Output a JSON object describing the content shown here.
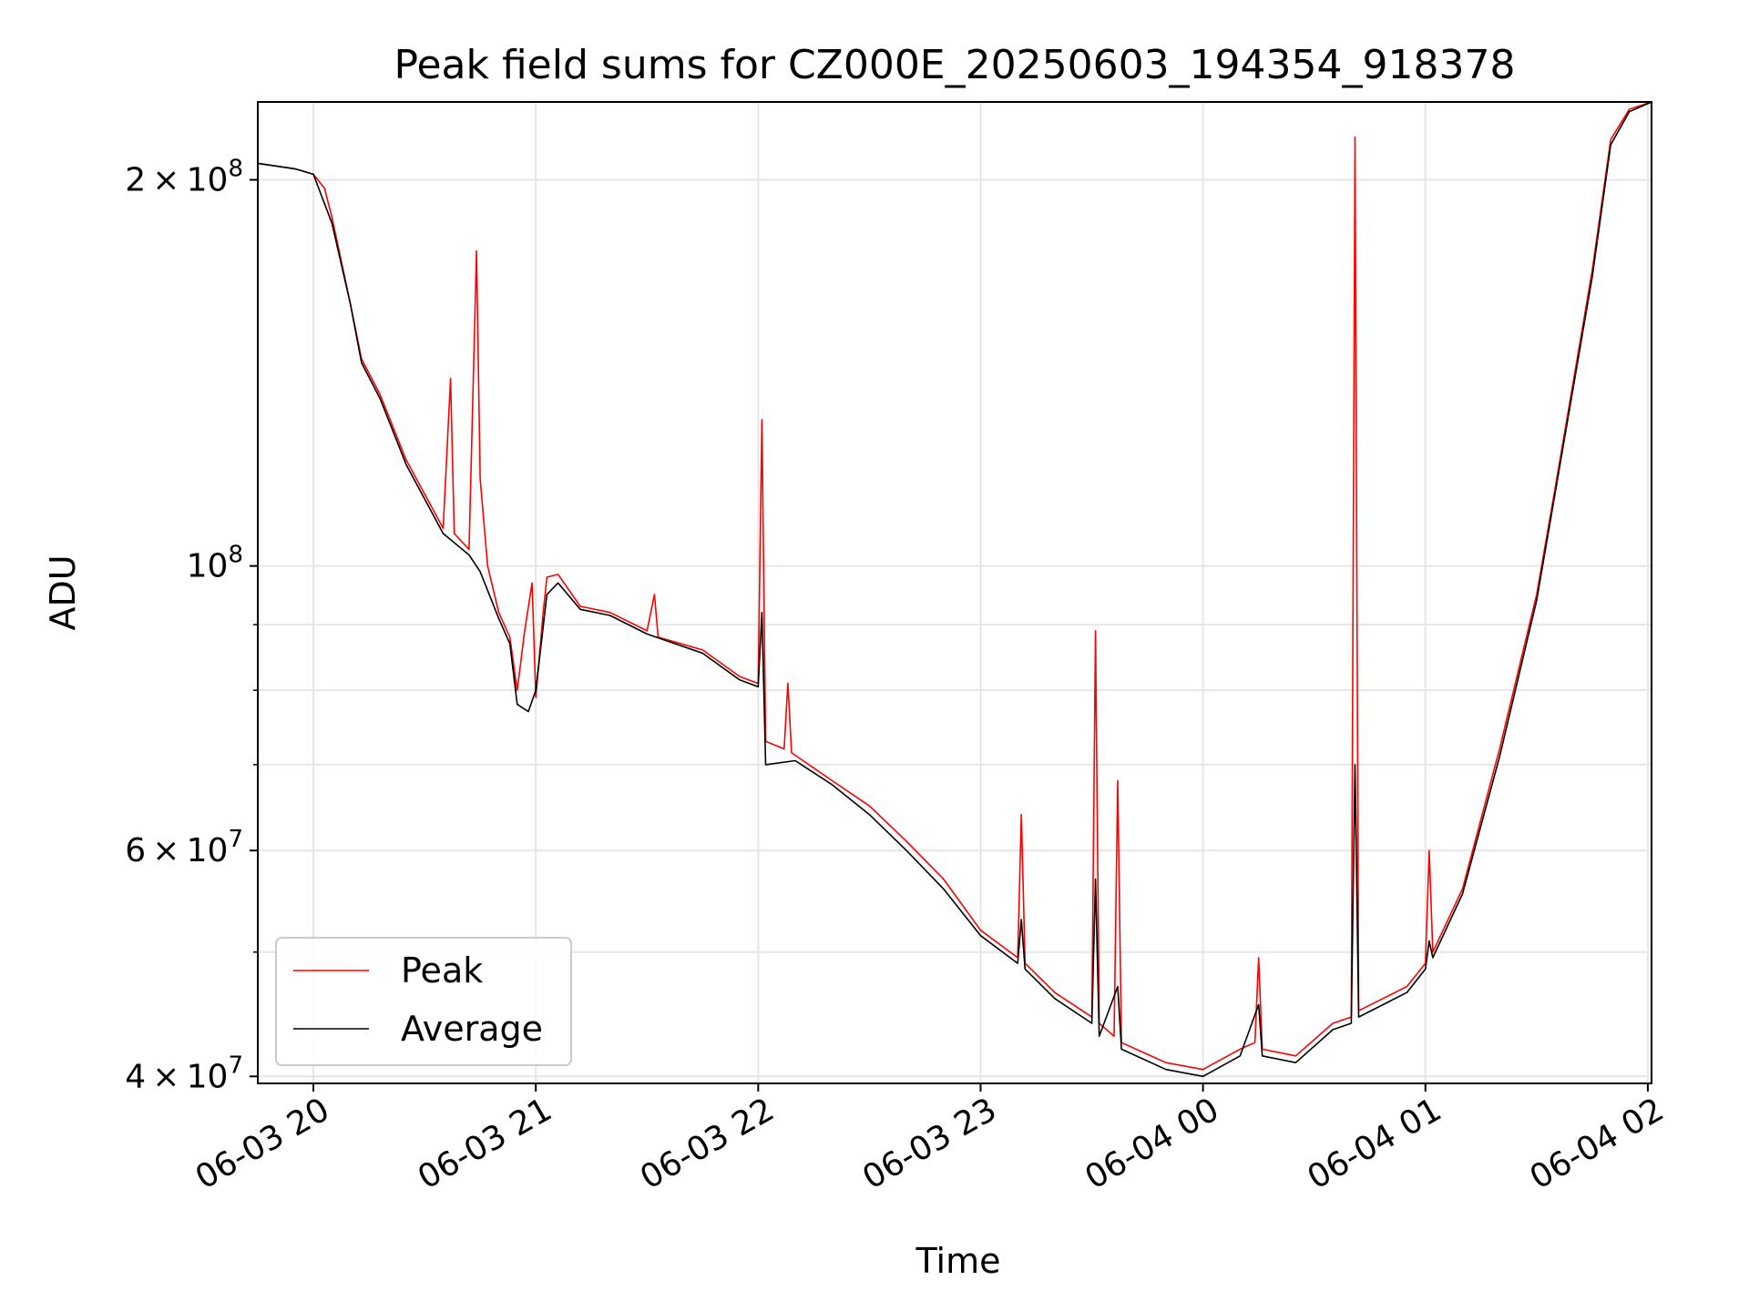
{
  "chart_data": {
    "type": "line",
    "title": "Peak field sums for CZ000E_20250603_194354_918378",
    "xlabel": "Time",
    "ylabel": "ADU",
    "yscale": "log",
    "grid": true,
    "legend_placement": "lower-left",
    "xlim": [
      "2025-06-03 19:45",
      "2025-06-04 02:01"
    ],
    "ylim": [
      39500000,
      230000000
    ],
    "x_ticks": [
      {
        "value": "2025-06-03 20:00",
        "label": "06-03 20"
      },
      {
        "value": "2025-06-03 21:00",
        "label": "06-03 21"
      },
      {
        "value": "2025-06-03 22:00",
        "label": "06-03 22"
      },
      {
        "value": "2025-06-03 23:00",
        "label": "06-03 23"
      },
      {
        "value": "2025-06-04 00:00",
        "label": "06-04 00"
      },
      {
        "value": "2025-06-04 01:00",
        "label": "06-04 01"
      },
      {
        "value": "2025-06-04 02:00",
        "label": "06-04 02"
      }
    ],
    "y_ticks": [
      {
        "value": 200000000,
        "mantissa": "2",
        "exponent": "8"
      },
      {
        "value": 100000000,
        "mantissa": "",
        "exponent": "8"
      },
      {
        "value": 60000000,
        "mantissa": "6",
        "exponent": "7"
      },
      {
        "value": 40000000,
        "mantissa": "4",
        "exponent": "7"
      }
    ],
    "y_minor_ticks": [
      300000000,
      90000000,
      80000000,
      70000000,
      50000000
    ],
    "series": [
      {
        "name": "Peak",
        "color": "#ff0000",
        "points": [
          [
            "2025-06-03 19:45",
            206000000
          ],
          [
            "2025-06-03 19:55",
            204000000
          ],
          [
            "2025-06-03 20:00",
            202000000
          ],
          [
            "2025-06-03 20:03",
            197000000
          ],
          [
            "2025-06-03 20:05",
            187000000
          ],
          [
            "2025-06-03 20:10",
            160000000
          ],
          [
            "2025-06-03 20:13",
            145000000
          ],
          [
            "2025-06-03 20:18",
            136000000
          ],
          [
            "2025-06-03 20:25",
            121000000
          ],
          [
            "2025-06-03 20:35",
            107000000
          ],
          [
            "2025-06-03 20:37",
            140000000
          ],
          [
            "2025-06-03 20:38",
            106000000
          ],
          [
            "2025-06-03 20:42",
            103000000
          ],
          [
            "2025-06-03 20:44",
            176000000
          ],
          [
            "2025-06-03 20:45",
            117000000
          ],
          [
            "2025-06-03 20:47",
            100000000
          ],
          [
            "2025-06-03 20:50",
            92000000
          ],
          [
            "2025-06-03 20:53",
            88000000
          ],
          [
            "2025-06-03 20:55",
            80000000
          ],
          [
            "2025-06-03 20:57",
            89000000
          ],
          [
            "2025-06-03 20:59",
            97000000
          ],
          [
            "2025-06-03 21:00",
            79000000
          ],
          [
            "2025-06-03 21:02",
            92000000
          ],
          [
            "2025-06-03 21:03",
            98000000
          ],
          [
            "2025-06-03 21:06",
            98500000
          ],
          [
            "2025-06-03 21:12",
            93000000
          ],
          [
            "2025-06-03 21:20",
            92000000
          ],
          [
            "2025-06-03 21:30",
            89000000
          ],
          [
            "2025-06-03 21:32",
            95000000
          ],
          [
            "2025-06-03 21:33",
            88000000
          ],
          [
            "2025-06-03 21:45",
            86000000
          ],
          [
            "2025-06-03 21:55",
            82000000
          ],
          [
            "2025-06-03 22:00",
            81000000
          ],
          [
            "2025-06-03 22:01",
            130000000
          ],
          [
            "2025-06-03 22:02",
            73000000
          ],
          [
            "2025-06-03 22:07",
            72000000
          ],
          [
            "2025-06-03 22:08",
            81000000
          ],
          [
            "2025-06-03 22:09",
            71500000
          ],
          [
            "2025-06-03 22:20",
            68000000
          ],
          [
            "2025-06-03 22:30",
            65000000
          ],
          [
            "2025-06-03 22:40",
            61000000
          ],
          [
            "2025-06-03 22:50",
            57000000
          ],
          [
            "2025-06-03 23:00",
            52000000
          ],
          [
            "2025-06-03 23:10",
            49500000
          ],
          [
            "2025-06-03 23:11",
            64000000
          ],
          [
            "2025-06-03 23:12",
            49000000
          ],
          [
            "2025-06-03 23:20",
            46500000
          ],
          [
            "2025-06-03 23:30",
            44500000
          ],
          [
            "2025-06-03 23:31",
            89000000
          ],
          [
            "2025-06-03 23:32",
            44000000
          ],
          [
            "2025-06-03 23:36",
            43000000
          ],
          [
            "2025-06-03 23:37",
            68000000
          ],
          [
            "2025-06-03 23:38",
            42500000
          ],
          [
            "2025-06-03 23:50",
            41000000
          ],
          [
            "2025-06-04 00:00",
            40500000
          ],
          [
            "2025-06-04 00:10",
            42000000
          ],
          [
            "2025-06-04 00:14",
            42500000
          ],
          [
            "2025-06-04 00:15",
            49500000
          ],
          [
            "2025-06-04 00:16",
            42000000
          ],
          [
            "2025-06-04 00:25",
            41500000
          ],
          [
            "2025-06-04 00:35",
            44000000
          ],
          [
            "2025-06-04 00:40",
            44500000
          ],
          [
            "2025-06-04 00:41",
            216000000
          ],
          [
            "2025-06-04 00:42",
            45000000
          ],
          [
            "2025-06-04 00:55",
            47000000
          ],
          [
            "2025-06-04 01:00",
            49000000
          ],
          [
            "2025-06-04 01:01",
            60000000
          ],
          [
            "2025-06-04 01:02",
            50000000
          ],
          [
            "2025-06-04 01:10",
            56000000
          ],
          [
            "2025-06-04 01:20",
            72000000
          ],
          [
            "2025-06-04 01:30",
            95000000
          ],
          [
            "2025-06-04 01:35",
            115000000
          ],
          [
            "2025-06-04 01:45",
            170000000
          ],
          [
            "2025-06-04 01:50",
            215000000
          ],
          [
            "2025-06-04 01:55",
            227000000
          ],
          [
            "2025-06-04 02:01",
            230000000
          ]
        ]
      },
      {
        "name": "Average",
        "color": "#000000",
        "points": [
          [
            "2025-06-03 19:45",
            206000000
          ],
          [
            "2025-06-03 19:55",
            204000000
          ],
          [
            "2025-06-03 20:00",
            202000000
          ],
          [
            "2025-06-03 20:05",
            185000000
          ],
          [
            "2025-06-03 20:10",
            160000000
          ],
          [
            "2025-06-03 20:13",
            144000000
          ],
          [
            "2025-06-03 20:18",
            135000000
          ],
          [
            "2025-06-03 20:25",
            120000000
          ],
          [
            "2025-06-03 20:35",
            106000000
          ],
          [
            "2025-06-03 20:42",
            102000000
          ],
          [
            "2025-06-03 20:45",
            99000000
          ],
          [
            "2025-06-03 20:50",
            91000000
          ],
          [
            "2025-06-03 20:53",
            87000000
          ],
          [
            "2025-06-03 20:55",
            78000000
          ],
          [
            "2025-06-03 20:58",
            77000000
          ],
          [
            "2025-06-03 21:00",
            80000000
          ],
          [
            "2025-06-03 21:03",
            95000000
          ],
          [
            "2025-06-03 21:06",
            97000000
          ],
          [
            "2025-06-03 21:12",
            92500000
          ],
          [
            "2025-06-03 21:20",
            91500000
          ],
          [
            "2025-06-03 21:30",
            88500000
          ],
          [
            "2025-06-03 21:45",
            85500000
          ],
          [
            "2025-06-03 21:55",
            81500000
          ],
          [
            "2025-06-03 22:00",
            80500000
          ],
          [
            "2025-06-03 22:01",
            92000000
          ],
          [
            "2025-06-03 22:02",
            70000000
          ],
          [
            "2025-06-03 22:10",
            70500000
          ],
          [
            "2025-06-03 22:20",
            67500000
          ],
          [
            "2025-06-03 22:30",
            64000000
          ],
          [
            "2025-06-03 22:40",
            60000000
          ],
          [
            "2025-06-03 22:50",
            56000000
          ],
          [
            "2025-06-03 23:00",
            51500000
          ],
          [
            "2025-06-03 23:10",
            49000000
          ],
          [
            "2025-06-03 23:11",
            53000000
          ],
          [
            "2025-06-03 23:12",
            48500000
          ],
          [
            "2025-06-03 23:20",
            46000000
          ],
          [
            "2025-06-03 23:30",
            44000000
          ],
          [
            "2025-06-03 23:31",
            57000000
          ],
          [
            "2025-06-03 23:32",
            43000000
          ],
          [
            "2025-06-03 23:37",
            47000000
          ],
          [
            "2025-06-03 23:38",
            42000000
          ],
          [
            "2025-06-03 23:50",
            40500000
          ],
          [
            "2025-06-04 00:00",
            40000000
          ],
          [
            "2025-06-04 00:10",
            41500000
          ],
          [
            "2025-06-04 00:15",
            45500000
          ],
          [
            "2025-06-04 00:16",
            41500000
          ],
          [
            "2025-06-04 00:25",
            41000000
          ],
          [
            "2025-06-04 00:35",
            43500000
          ],
          [
            "2025-06-04 00:40",
            44000000
          ],
          [
            "2025-06-04 00:41",
            70000000
          ],
          [
            "2025-06-04 00:42",
            44500000
          ],
          [
            "2025-06-04 00:55",
            46500000
          ],
          [
            "2025-06-04 01:00",
            48500000
          ],
          [
            "2025-06-04 01:01",
            51000000
          ],
          [
            "2025-06-04 01:02",
            49500000
          ],
          [
            "2025-06-04 01:10",
            55500000
          ],
          [
            "2025-06-04 01:20",
            71000000
          ],
          [
            "2025-06-04 01:30",
            94000000
          ],
          [
            "2025-06-04 01:35",
            114000000
          ],
          [
            "2025-06-04 01:45",
            168000000
          ],
          [
            "2025-06-04 01:50",
            213000000
          ],
          [
            "2025-06-04 01:55",
            226000000
          ],
          [
            "2025-06-04 02:01",
            230000000
          ]
        ]
      }
    ]
  }
}
